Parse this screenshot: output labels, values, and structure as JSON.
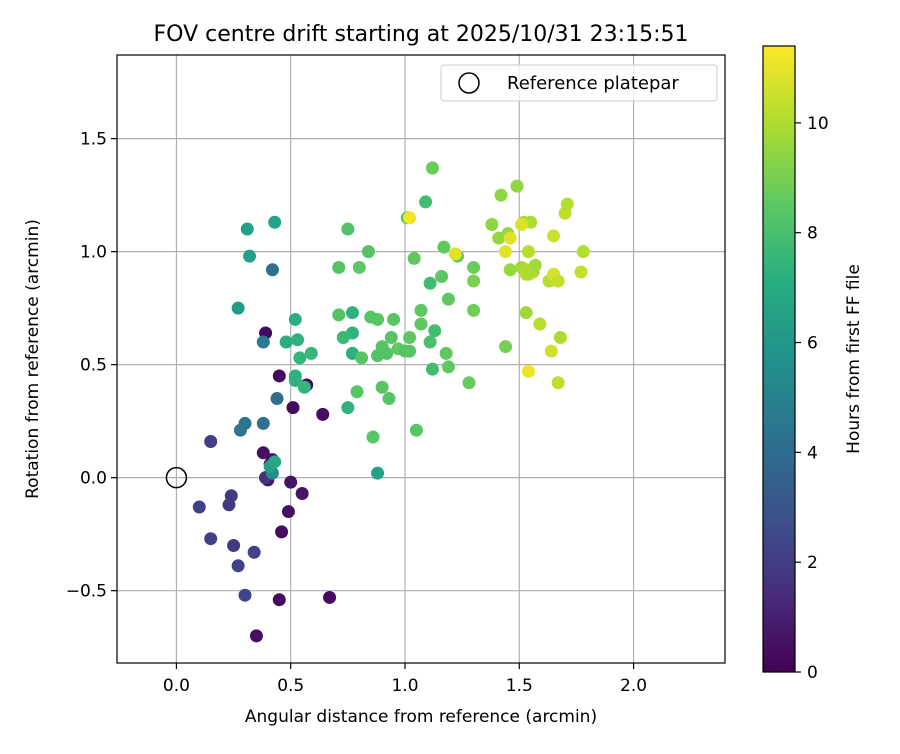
{
  "chart_data": {
    "type": "scatter",
    "title": "FOV centre drift starting at 2025/10/31 23:15:51",
    "xlabel": "Angular distance from reference (arcmin)",
    "ylabel": "Rotation from reference (arcmin)",
    "xlim": [
      -0.26,
      2.4
    ],
    "ylim": [
      -0.82,
      1.87
    ],
    "xticks": [
      0.0,
      0.5,
      1.0,
      1.5,
      2.0
    ],
    "xtick_labels": [
      "0.0",
      "0.5",
      "1.0",
      "1.5",
      "2.0"
    ],
    "yticks": [
      -0.5,
      0.0,
      0.5,
      1.0,
      1.5
    ],
    "ytick_labels": [
      "−0.5",
      "0.0",
      "0.5",
      "1.0",
      "1.5"
    ],
    "grid": true,
    "legend": {
      "position": "top-right",
      "entries": [
        "Reference platepar"
      ]
    },
    "reference_point": {
      "x": 0.0,
      "y": 0.0,
      "label": "Reference platepar"
    },
    "colorbar": {
      "label": "Hours from first FF file",
      "range": [
        0,
        11.4
      ],
      "ticks": [
        0,
        2,
        4,
        6,
        8,
        10
      ],
      "tick_labels": [
        "0",
        "2",
        "4",
        "6",
        "8",
        "10"
      ],
      "colormap": "viridis"
    },
    "points": [
      [
        0.39,
        0.64,
        0.3
      ],
      [
        0.45,
        0.45,
        0.3
      ],
      [
        0.57,
        0.41,
        0.3
      ],
      [
        0.51,
        0.31,
        0.3
      ],
      [
        0.64,
        0.28,
        0.4
      ],
      [
        0.38,
        0.11,
        0.5
      ],
      [
        0.42,
        0.08,
        0.5
      ],
      [
        0.41,
        0.06,
        0.6
      ],
      [
        0.39,
        0.0,
        0.6
      ],
      [
        0.4,
        -0.01,
        0.7
      ],
      [
        0.5,
        -0.02,
        0.6
      ],
      [
        0.55,
        -0.07,
        0.6
      ],
      [
        0.49,
        -0.15,
        0.5
      ],
      [
        0.46,
        -0.24,
        0.4
      ],
      [
        0.45,
        -0.54,
        0.3
      ],
      [
        0.67,
        -0.53,
        0.3
      ],
      [
        0.35,
        -0.7,
        0.5
      ],
      [
        0.39,
        0.0,
        1.6
      ],
      [
        0.24,
        -0.08,
        2.0
      ],
      [
        0.23,
        -0.12,
        2.0
      ],
      [
        0.1,
        -0.13,
        2.2
      ],
      [
        0.15,
        0.16,
        2.2
      ],
      [
        0.15,
        -0.27,
        2.2
      ],
      [
        0.25,
        -0.3,
        2.0
      ],
      [
        0.27,
        -0.39,
        2.3
      ],
      [
        0.34,
        -0.33,
        2.3
      ],
      [
        0.3,
        -0.52,
        2.4
      ],
      [
        0.3,
        0.24,
        4.5
      ],
      [
        0.28,
        0.21,
        4.5
      ],
      [
        0.38,
        0.24,
        4.2
      ],
      [
        0.44,
        0.35,
        4.0
      ],
      [
        0.38,
        0.6,
        4.6
      ],
      [
        0.42,
        0.92,
        4.2
      ],
      [
        0.42,
        0.02,
        5.5
      ],
      [
        0.41,
        0.05,
        6.5
      ],
      [
        0.43,
        0.07,
        6.8
      ],
      [
        0.27,
        0.75,
        6.3
      ],
      [
        0.31,
        1.1,
        6.5
      ],
      [
        0.32,
        0.98,
        6.5
      ],
      [
        0.43,
        1.13,
        6.6
      ],
      [
        0.88,
        0.02,
        6.6
      ],
      [
        0.48,
        0.6,
        7.1
      ],
      [
        0.52,
        0.7,
        7.1
      ],
      [
        0.53,
        0.61,
        7.3
      ],
      [
        0.52,
        0.45,
        7.2
      ],
      [
        0.52,
        0.43,
        7.3
      ],
      [
        0.54,
        0.53,
        7.6
      ],
      [
        0.56,
        0.4,
        7.6
      ],
      [
        0.59,
        0.55,
        7.6
      ],
      [
        0.75,
        0.31,
        7.3
      ],
      [
        0.77,
        0.55,
        7.2
      ],
      [
        0.77,
        0.64,
        7.4
      ],
      [
        0.77,
        0.73,
        7.3
      ],
      [
        0.73,
        0.62,
        7.7
      ],
      [
        0.75,
        1.1,
        8.2
      ],
      [
        0.71,
        0.93,
        8.3
      ],
      [
        0.71,
        0.72,
        8.3
      ],
      [
        0.8,
        0.93,
        8.5
      ],
      [
        0.84,
        1.0,
        8.3
      ],
      [
        0.79,
        0.38,
        8.4
      ],
      [
        0.81,
        0.53,
        8.4
      ],
      [
        0.85,
        0.71,
        8.4
      ],
      [
        0.88,
        0.7,
        8.4
      ],
      [
        0.88,
        0.54,
        8.3
      ],
      [
        0.86,
        0.18,
        8.4
      ],
      [
        0.9,
        0.58,
        8.4
      ],
      [
        0.92,
        0.55,
        8.3
      ],
      [
        0.93,
        0.35,
        8.4
      ],
      [
        0.9,
        0.4,
        8.4
      ],
      [
        0.94,
        0.62,
        8.4
      ],
      [
        0.95,
        0.7,
        8.4
      ],
      [
        0.97,
        0.57,
        8.6
      ],
      [
        1.0,
        0.56,
        8.3
      ],
      [
        1.01,
        1.15,
        8.4
      ],
      [
        1.02,
        0.62,
        8.5
      ],
      [
        1.02,
        0.56,
        8.4
      ],
      [
        1.05,
        0.21,
        8.4
      ],
      [
        1.04,
        0.97,
        8.6
      ],
      [
        1.07,
        0.74,
        8.5
      ],
      [
        1.07,
        0.68,
        8.5
      ],
      [
        1.09,
        1.22,
        7.9
      ],
      [
        1.11,
        0.86,
        7.9
      ],
      [
        1.11,
        0.6,
        8.1
      ],
      [
        1.12,
        0.48,
        7.9
      ],
      [
        1.13,
        0.65,
        7.9
      ],
      [
        1.12,
        1.37,
        8.8
      ],
      [
        1.16,
        0.89,
        8.5
      ],
      [
        1.17,
        1.02,
        8.6
      ],
      [
        1.18,
        0.55,
        8.6
      ],
      [
        1.19,
        0.49,
        8.6
      ],
      [
        1.19,
        0.79,
        8.6
      ],
      [
        1.23,
        0.98,
        8.7
      ],
      [
        1.28,
        0.42,
        8.7
      ],
      [
        1.3,
        0.93,
        8.8
      ],
      [
        1.3,
        0.87,
        9.1
      ],
      [
        1.3,
        0.74,
        8.9
      ],
      [
        1.38,
        1.12,
        9.5
      ],
      [
        1.41,
        1.06,
        9.6
      ],
      [
        1.42,
        1.25,
        9.5
      ],
      [
        1.44,
        0.58,
        9.0
      ],
      [
        1.45,
        1.08,
        9.6
      ],
      [
        1.46,
        0.92,
        9.6
      ],
      [
        1.49,
        1.29,
        9.5
      ],
      [
        1.51,
        0.93,
        9.8
      ],
      [
        1.52,
        1.13,
        10.0
      ],
      [
        1.53,
        0.92,
        10.0
      ],
      [
        1.53,
        0.9,
        10.1
      ],
      [
        1.54,
        1.0,
        10.2
      ],
      [
        1.53,
        0.73,
        9.8
      ],
      [
        1.54,
        0.9,
        10.0
      ],
      [
        1.55,
        1.13,
        10.0
      ],
      [
        1.56,
        0.91,
        10.0
      ],
      [
        1.57,
        0.94,
        9.8
      ],
      [
        1.59,
        0.68,
        10.2
      ],
      [
        1.63,
        0.87,
        10.2
      ],
      [
        1.64,
        0.56,
        10.6
      ],
      [
        1.65,
        0.9,
        10.7
      ],
      [
        1.65,
        1.07,
        10.5
      ],
      [
        1.67,
        0.87,
        10.4
      ],
      [
        1.67,
        0.42,
        10.3
      ],
      [
        1.68,
        0.62,
        10.0
      ],
      [
        1.7,
        1.17,
        10.3
      ],
      [
        1.71,
        1.21,
        10.1
      ],
      [
        1.77,
        0.91,
        10.4
      ],
      [
        1.78,
        1.0,
        10.1
      ],
      [
        1.02,
        1.15,
        11.2
      ],
      [
        1.22,
        0.99,
        10.9
      ],
      [
        1.44,
        1.0,
        10.9
      ],
      [
        1.46,
        1.06,
        10.9
      ],
      [
        1.51,
        1.12,
        10.8
      ],
      [
        1.54,
        0.47,
        11.1
      ]
    ]
  }
}
